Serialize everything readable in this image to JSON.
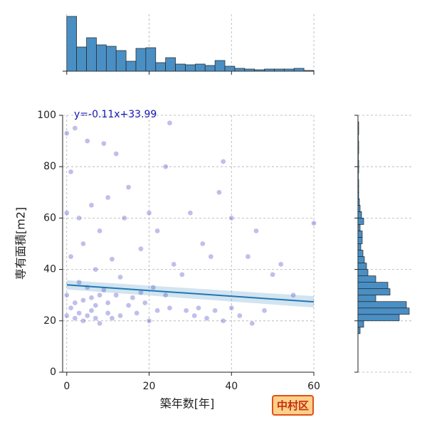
{
  "chart_data": {
    "type": "jointplot",
    "x_label": "築年数[年]",
    "y_label": "専有面積[m2]",
    "annotation": "y=-0.11x+33.99",
    "regression": {
      "slope": -0.11,
      "intercept": 33.99,
      "color": "#1f77b4"
    },
    "area_label": "中村区",
    "xlim": [
      -1,
      60
    ],
    "xticks": [
      0,
      20,
      40,
      60
    ],
    "ylim": [
      0,
      100
    ],
    "yticks": [
      0,
      20,
      40,
      60,
      80,
      100
    ],
    "grid": true,
    "point_color": "#2a2ac0",
    "x": [
      0,
      0,
      0,
      0,
      1,
      1,
      1,
      2,
      2,
      2,
      3,
      3,
      3,
      4,
      4,
      4,
      5,
      5,
      5,
      6,
      6,
      6,
      7,
      7,
      7,
      8,
      8,
      8,
      9,
      9,
      10,
      10,
      10,
      11,
      11,
      12,
      12,
      13,
      13,
      14,
      15,
      15,
      16,
      17,
      18,
      18,
      19,
      20,
      20,
      21,
      22,
      22,
      24,
      24,
      25,
      25,
      26,
      28,
      29,
      30,
      31,
      32,
      33,
      34,
      35,
      36,
      37,
      38,
      38,
      40,
      40,
      42,
      44,
      45,
      46,
      48,
      50,
      52,
      55,
      60
    ],
    "y": [
      93,
      62,
      30,
      22,
      78,
      45,
      25,
      95,
      27,
      21,
      35,
      60,
      23,
      28,
      50,
      20,
      90,
      33,
      22,
      65,
      29,
      24,
      40,
      26,
      21,
      55,
      30,
      19,
      89,
      32,
      23,
      68,
      27,
      44,
      21,
      85,
      30,
      37,
      22,
      60,
      26,
      72,
      29,
      23,
      48,
      31,
      27,
      20,
      62,
      33,
      55,
      24,
      80,
      30,
      97,
      25,
      42,
      38,
      24,
      62,
      22,
      25,
      50,
      21,
      45,
      24,
      70,
      20,
      82,
      25,
      60,
      22,
      45,
      19,
      55,
      24,
      38,
      42,
      30,
      58
    ],
    "top_hist": {
      "bins": [
        0,
        2.4,
        4.8,
        7.2,
        9.6,
        12,
        14.4,
        16.8,
        19.2,
        21.6,
        24,
        26.4,
        28.8,
        31.2,
        33.6,
        36,
        38.4,
        40.8,
        43.2,
        45.6,
        48,
        50.4,
        52.8,
        55.2,
        57.6,
        60
      ],
      "counts": [
        77,
        34,
        47,
        37,
        35,
        29,
        14,
        32,
        33,
        12,
        19,
        10,
        9,
        10,
        8,
        15,
        7,
        4,
        3,
        2,
        3,
        3,
        3,
        4,
        1
      ],
      "ylim": [
        0,
        80
      ],
      "color": "#4a8fc4"
    },
    "right_hist": {
      "bins": [
        15,
        17.5,
        20,
        22.5,
        25,
        27.5,
        30,
        32.5,
        35,
        37.5,
        40,
        42.5,
        45,
        47.5,
        50,
        52.5,
        55,
        57.5,
        60,
        62.5,
        65,
        67.5,
        70,
        72.5,
        75,
        77.5,
        80,
        82.5,
        85,
        87.5,
        90,
        92.5,
        95,
        97.5
      ],
      "counts": [
        3,
        8,
        58,
        72,
        68,
        25,
        45,
        42,
        25,
        14,
        12,
        9,
        7,
        4,
        6,
        6,
        3,
        8,
        5,
        3,
        2,
        1,
        1,
        1,
        0.5,
        1,
        1,
        0.5,
        1,
        1,
        0.5,
        1,
        1
      ],
      "xlim": [
        0,
        75
      ],
      "color": "#4a8fc4"
    }
  }
}
